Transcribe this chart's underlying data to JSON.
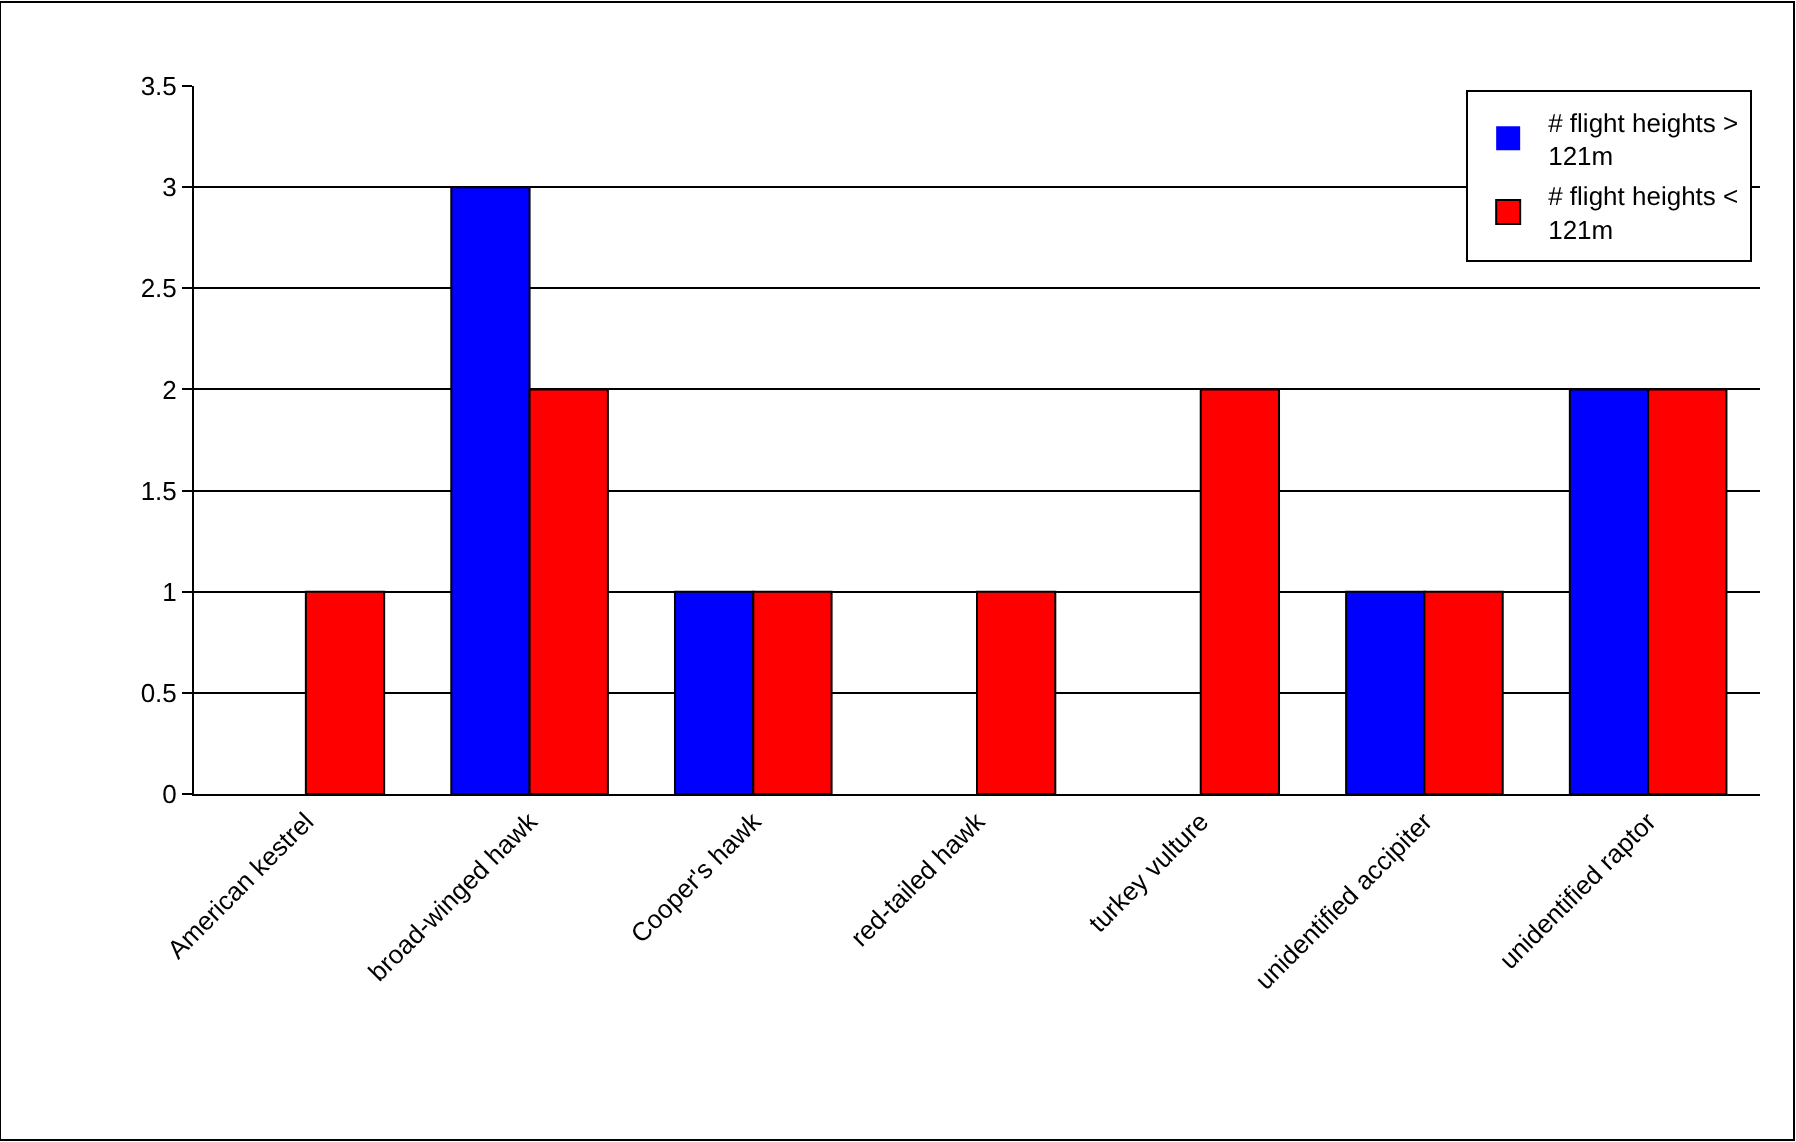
{
  "chart_data": {
    "type": "bar",
    "categories": [
      "American kestrel",
      "broad-winged hawk",
      "Cooper's hawk",
      "red-tailed hawk",
      "turkey vulture",
      "unidentified accipiter",
      "unidentified raptor"
    ],
    "series": [
      {
        "name": "# flight heights > 121m",
        "color": "#0000ff",
        "values": [
          0,
          3,
          1,
          0,
          0,
          1,
          2
        ]
      },
      {
        "name": "# flight heights < 121m",
        "color": "#ff0000",
        "values": [
          1,
          2,
          1,
          1,
          2,
          1,
          2
        ]
      }
    ],
    "ylim": [
      0,
      3.5
    ],
    "yticks": [
      0,
      0.5,
      1,
      1.5,
      2,
      2.5,
      3,
      3.5
    ],
    "grid": "y",
    "legend": "top right"
  }
}
